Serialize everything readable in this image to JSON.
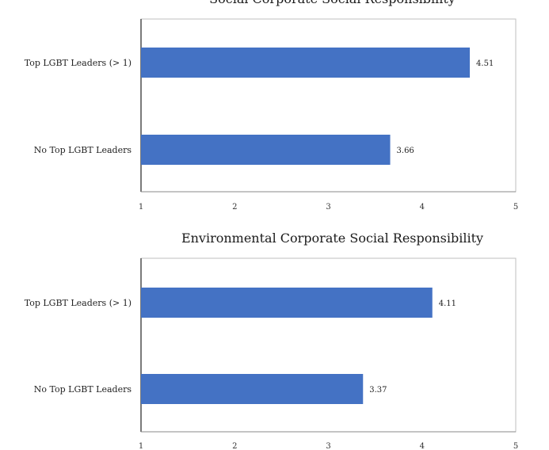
{
  "chart_data": [
    {
      "type": "bar",
      "orientation": "horizontal",
      "title": "Social Corporate Social Responsibility",
      "categories": [
        "Top LGBT Leaders (> 1)",
        "No Top LGBT Leaders"
      ],
      "values": [
        4.51,
        3.66
      ],
      "value_labels": [
        "4.51",
        "3.66"
      ],
      "xlim": [
        1,
        5
      ],
      "xticks": [
        "1",
        "2",
        "3",
        "4",
        "5"
      ],
      "xlabel": "",
      "ylabel": "",
      "grid": false,
      "bar_color": "#4472C4"
    },
    {
      "type": "bar",
      "orientation": "horizontal",
      "title": "Environmental Corporate Social Responsibility",
      "categories": [
        "Top LGBT Leaders (> 1)",
        "No Top LGBT Leaders"
      ],
      "values": [
        4.11,
        3.37
      ],
      "value_labels": [
        "4.11",
        "3.37"
      ],
      "xlim": [
        1,
        5
      ],
      "xticks": [
        "1",
        "2",
        "3",
        "4",
        "5"
      ],
      "xlabel": "",
      "ylabel": "",
      "grid": false,
      "bar_color": "#4472C4"
    }
  ]
}
